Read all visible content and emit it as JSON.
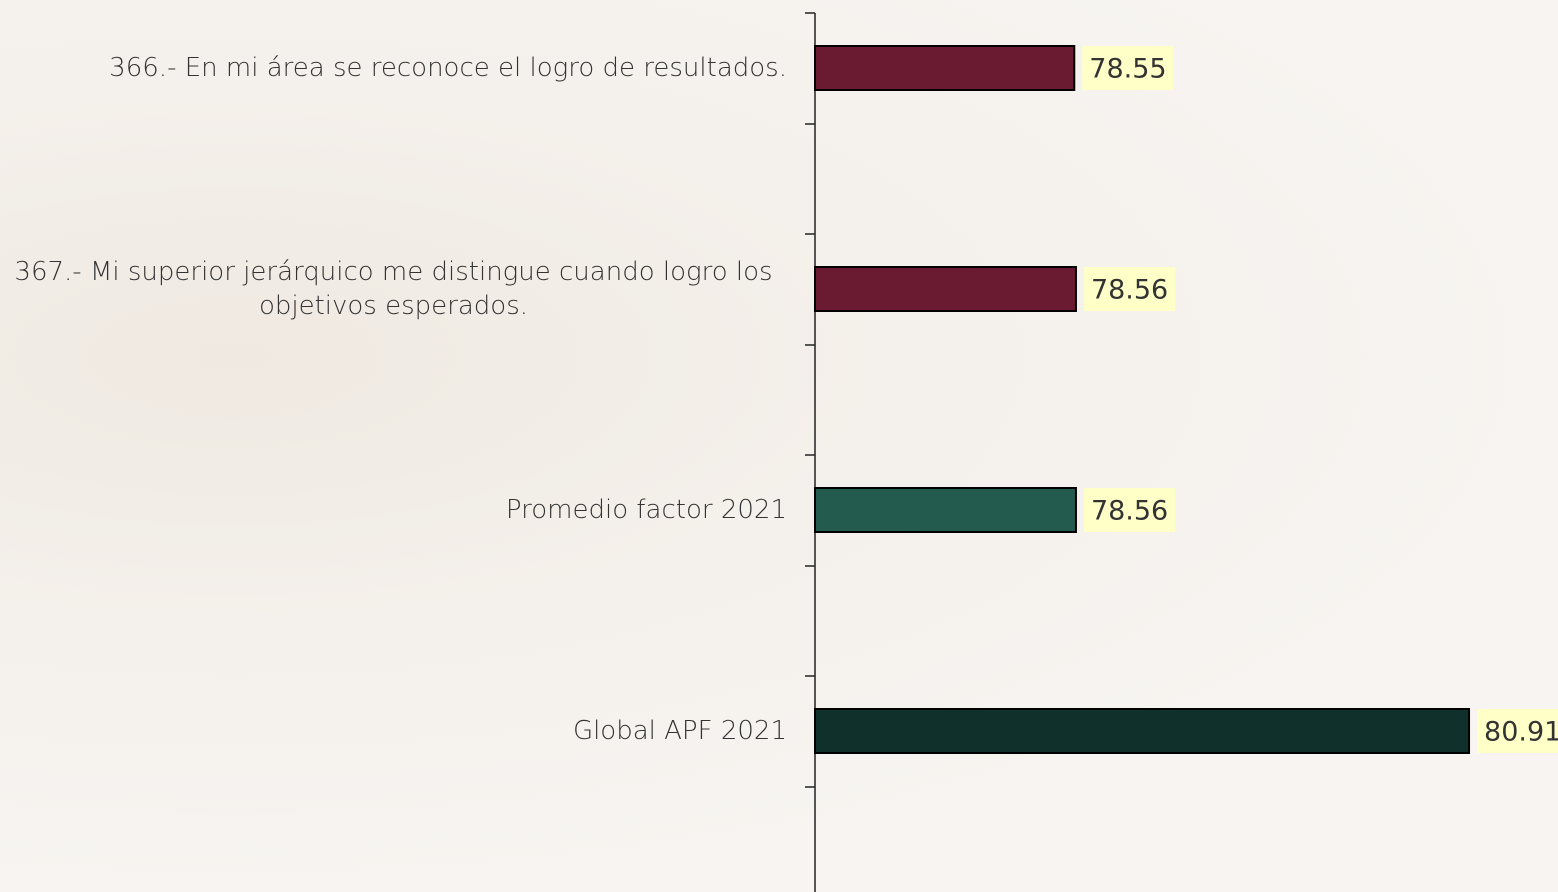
{
  "chart_data": {
    "type": "hbar",
    "categories": [
      "366.- En mi área se reconoce el logro de resultados.",
      "367.- Mi superior jerárquico me distingue cuando logro los objetivos esperados.",
      "Promedio factor 2021",
      "Global APF 2021"
    ],
    "values": [
      78.55,
      78.56,
      78.56,
      80.91
    ],
    "colors": [
      "#6a1a31",
      "#6a1a31",
      "#235b4e",
      "#10302c"
    ],
    "xlim": [
      77,
      81.4
    ]
  }
}
